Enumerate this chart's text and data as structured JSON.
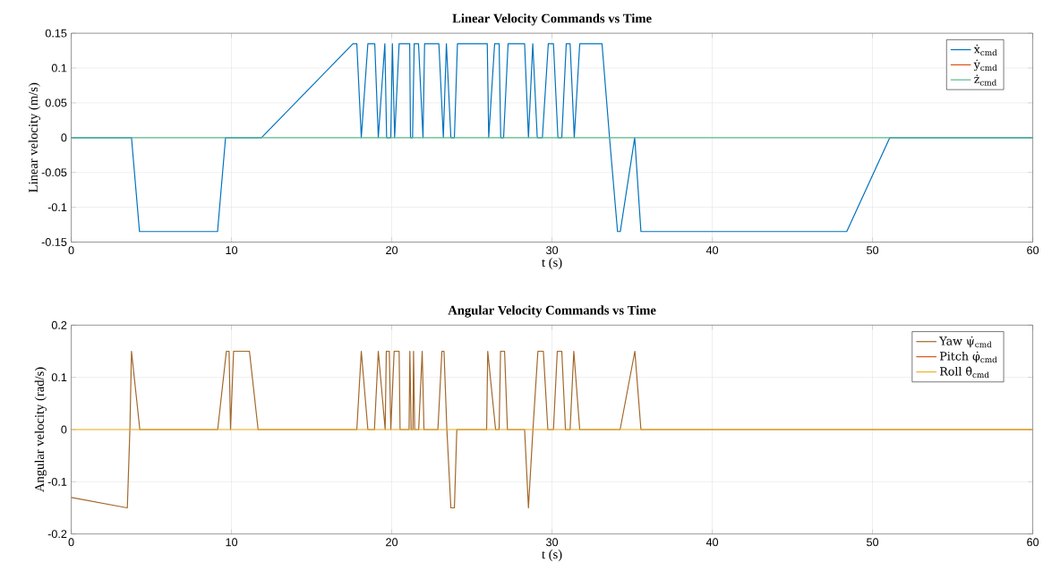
{
  "chart_data": [
    {
      "type": "line",
      "title": "Linear Velocity Commands vs Time",
      "xlabel": "t (s)",
      "ylabel": "Linear velocity (m/s)",
      "xlim": [
        0,
        60
      ],
      "ylim": [
        -0.15,
        0.15
      ],
      "xticks": [
        0,
        10,
        20,
        30,
        40,
        50,
        60
      ],
      "yticks": [
        -0.15,
        -0.1,
        -0.05,
        0,
        0.05,
        0.1,
        0.15
      ],
      "grid": true,
      "legend": "top right",
      "series": [
        {
          "name": "ẋ$_{cmd}$",
          "color": "#0072bd",
          "x": [
            0,
            3.76,
            4.26,
            9.13,
            9.63,
            11.87,
            17.58,
            17.82,
            18.1,
            18.51,
            18.94,
            19.16,
            19.57,
            19.68,
            19.94,
            20.04,
            20.18,
            20.46,
            21.12,
            21.17,
            21.3,
            21.4,
            21.67,
            21.95,
            22.05,
            22.94,
            23.22,
            23.41,
            23.69,
            23.91,
            24.1,
            25.96,
            26.05,
            26.42,
            26.7,
            26.8,
            26.98,
            27.26,
            28.29,
            28.53,
            28.8,
            29.08,
            29.4,
            29.77,
            30.09,
            30.37,
            30.61,
            30.89,
            31.13,
            31.39,
            31.73,
            33.12,
            33.59,
            34.09,
            34.26,
            35.16,
            35.55,
            48.39,
            51.08,
            60
          ],
          "values": [
            0,
            0,
            -0.135,
            -0.135,
            0,
            0,
            0.135,
            0.135,
            0,
            0.135,
            0.135,
            0,
            0.135,
            0,
            0,
            0.135,
            0,
            0.135,
            0.135,
            0,
            0,
            0.135,
            0.135,
            0,
            0.135,
            0.135,
            0,
            0.135,
            0,
            0,
            0.135,
            0.135,
            0,
            0.135,
            0.135,
            0,
            0,
            0.135,
            0.135,
            0,
            0.135,
            0,
            0,
            0.135,
            0.135,
            0,
            0,
            0.135,
            0.135,
            0,
            0.135,
            0.135,
            0,
            -0.135,
            -0.135,
            0,
            -0.135,
            -0.135,
            0,
            0
          ]
        },
        {
          "name": "ẏ$_{cmd}$",
          "color": "#d95319",
          "values": [
            null,
            null
          ]
        },
        {
          "name": "ż$_{cmd}$",
          "color": "#5cb88a",
          "x": [
            0,
            60
          ],
          "values": [
            0,
            0
          ]
        }
      ]
    },
    {
      "type": "line",
      "title": "Angular Velocity Commands vs Time",
      "xlabel": "t (s)",
      "ylabel": "Angular velocity (rad/s)",
      "xlim": [
        0,
        60
      ],
      "ylim": [
        -0.2,
        0.2
      ],
      "xticks": [
        0,
        10,
        20,
        30,
        40,
        50,
        60
      ],
      "yticks": [
        -0.2,
        -0.1,
        0,
        0.1,
        0.2
      ],
      "grid": true,
      "legend": "top right",
      "series": [
        {
          "name": "Yaw ψ̇$_{cmd}$",
          "color": "#a2672a",
          "x": [
            0,
            3.5,
            3.66,
            3.76,
            4.28,
            9.14,
            9.68,
            9.85,
            9.94,
            10.13,
            11.12,
            11.66,
            17.82,
            18.1,
            18.51,
            18.92,
            19.16,
            19.59,
            19.66,
            19.85,
            19.94,
            20.15,
            20.46,
            20.52,
            21.08,
            21.13,
            21.21,
            21.32,
            21.36,
            21.43,
            21.68,
            21.9,
            22.01,
            22.88,
            23.13,
            23.26,
            23.44,
            23.69,
            23.91,
            24.06,
            25.92,
            25.99,
            26.48,
            26.7,
            26.79,
            27.04,
            27.22,
            28.29,
            28.53,
            28.81,
            29.12,
            29.46,
            29.74,
            30.09,
            30.33,
            30.61,
            30.84,
            31.13,
            31.36,
            31.73,
            34.25,
            35.17,
            35.55,
            60
          ],
          "values": [
            -0.13,
            -0.15,
            0,
            0.15,
            0,
            0,
            0.15,
            0.15,
            0,
            0.15,
            0.15,
            0,
            0,
            0.15,
            0,
            0,
            0.15,
            0,
            0.15,
            0.15,
            0,
            0.15,
            0.15,
            0,
            0,
            0.15,
            0,
            0,
            0.15,
            0,
            0,
            0.15,
            0,
            0,
            0.15,
            0.15,
            0,
            -0.15,
            -0.15,
            0,
            0,
            0.15,
            0,
            0,
            0.15,
            0.15,
            0,
            0,
            -0.15,
            0,
            0.15,
            0.15,
            0,
            0,
            0.15,
            0.15,
            0,
            0,
            0.15,
            0,
            0,
            0.15,
            0,
            0
          ]
        },
        {
          "name": "Pitch φ̇$_{cmd}$",
          "color": "#d95319",
          "values": [
            null,
            null
          ]
        },
        {
          "name": "Roll θ̇$_{cmd}$",
          "color": "#edb120",
          "x": [
            0,
            60
          ],
          "values": [
            0,
            0
          ]
        }
      ]
    }
  ]
}
